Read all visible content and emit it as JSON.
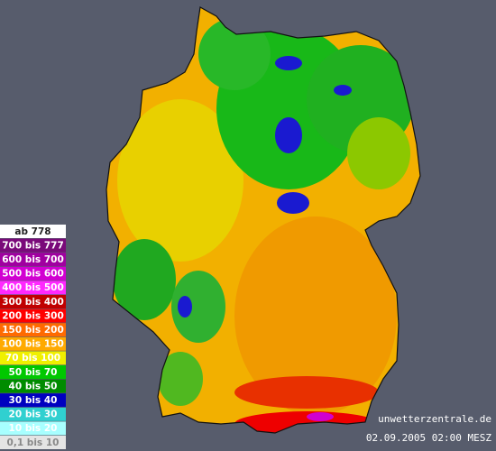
{
  "legend": {
    "items": [
      {
        "label": "ab 778",
        "color": "#ffffff",
        "text_color": "#222222"
      },
      {
        "label": "700 bis 777",
        "color": "#7a0a7a",
        "text_color": "#ffffff"
      },
      {
        "label": "600 bis 700",
        "color": "#a000a0",
        "text_color": "#ffffff"
      },
      {
        "label": "500 bis 600",
        "color": "#d200d2",
        "text_color": "#ffffff"
      },
      {
        "label": "400 bis 500",
        "color": "#ff28ff",
        "text_color": "#ffffff"
      },
      {
        "label": "300 bis 400",
        "color": "#c00000",
        "text_color": "#ffffff"
      },
      {
        "label": "200 bis 300",
        "color": "#ff0000",
        "text_color": "#ffffff"
      },
      {
        "label": "150 bis 200",
        "color": "#ff6a00",
        "text_color": "#ffffff"
      },
      {
        "label": "100 bis 150",
        "color": "#ffaa00",
        "text_color": "#ffffff"
      },
      {
        "label": "70 bis 100",
        "color": "#f0f000",
        "text_color": "#ffffff"
      },
      {
        "label": "50 bis 70",
        "color": "#00c800",
        "text_color": "#ffffff"
      },
      {
        "label": "40 bis 50",
        "color": "#008c00",
        "text_color": "#ffffff"
      },
      {
        "label": "30 bis 40",
        "color": "#0000c0",
        "text_color": "#ffffff"
      },
      {
        "label": "20 bis 30",
        "color": "#30d0d0",
        "text_color": "#ffffff"
      },
      {
        "label": "10 bis 20",
        "color": "#a8ffff",
        "text_color": "#ffffff"
      },
      {
        "label": "0,1 bis 10",
        "color": "#e4e4e4",
        "text_color": "#888888"
      }
    ]
  },
  "footer": {
    "site": "unwetterzentrale.de",
    "timestamp": "02.09.2005 02:00 MESZ"
  }
}
